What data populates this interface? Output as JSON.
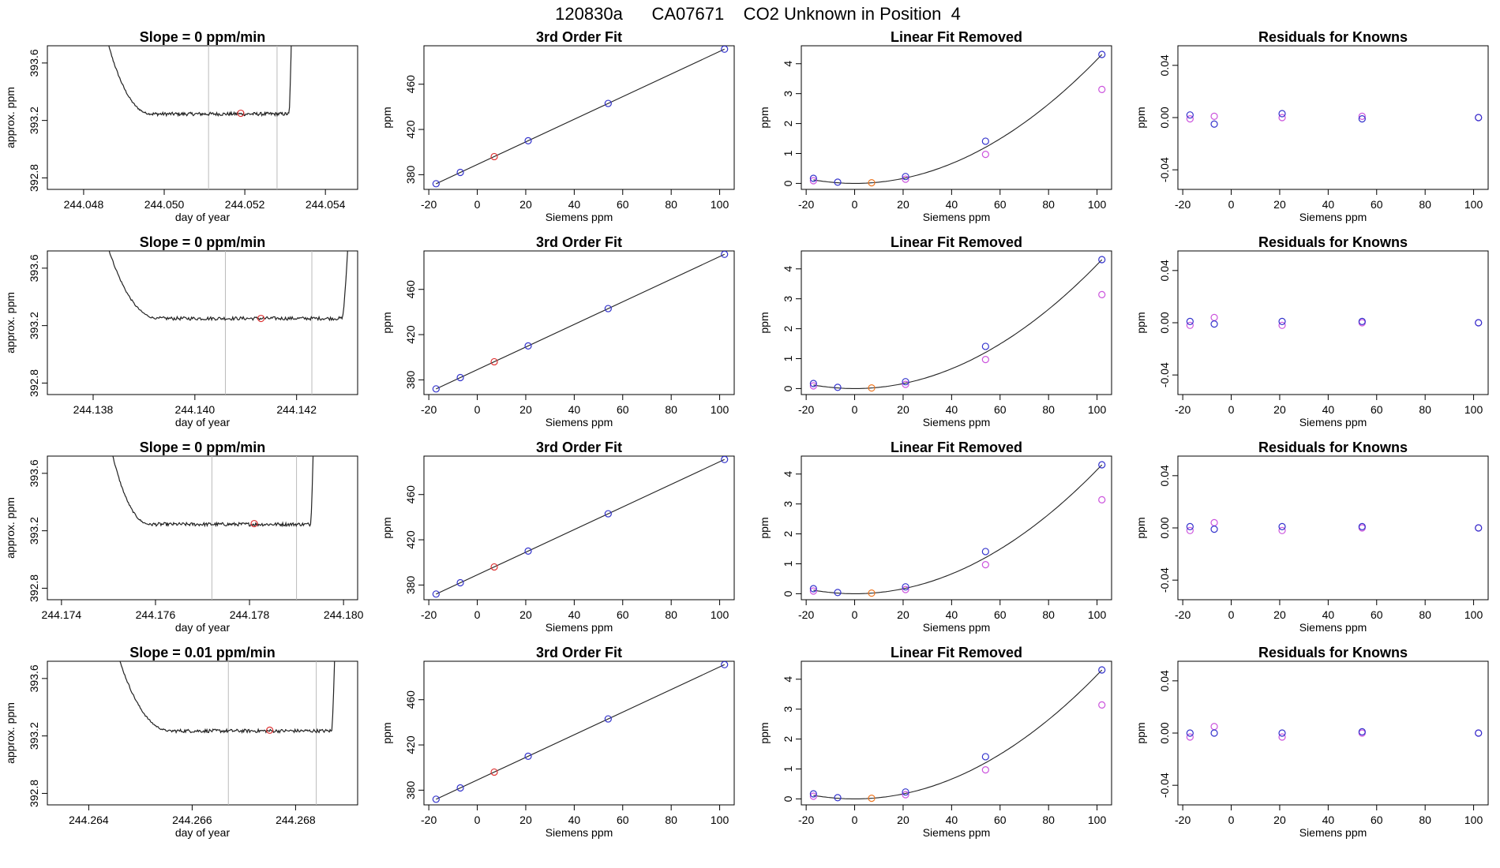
{
  "page": {
    "title": "120830a      CA07671    CO2 Unknown in Position  4"
  },
  "colors": {
    "trace": "#222222",
    "vline": "#bbbbbb",
    "unknown_point": "#dd3333",
    "known_point": "#3333cc",
    "removed_point": "#cc55dd",
    "interp_point": "#ee7722",
    "fit_line": "#222222",
    "frame": "#000000"
  },
  "chart_data": [
    {
      "type": "line",
      "id": "r1-trace",
      "title": "Slope =  0  ppm/min",
      "xlabel": "day of year",
      "ylabel": "approx. ppm",
      "xlim": [
        244.0471,
        244.0548
      ],
      "ylim": [
        392.72,
        393.72
      ],
      "xticks": [
        "244.048",
        "244.050",
        "244.052",
        "244.054"
      ],
      "yticks": [
        "392.8",
        "393.2",
        "393.6"
      ],
      "start": 244.0485,
      "end": 244.0532,
      "settle": 244.0497,
      "rise": 244.0531,
      "level": 393.245,
      "vlines": [
        244.0511,
        244.0528
      ],
      "unknown": {
        "x": 244.0519,
        "y": 393.25
      }
    },
    {
      "type": "scatter",
      "id": "r1-fit",
      "title": "3rd Order Fit",
      "xlabel": "Siemens ppm",
      "ylabel": "ppm",
      "xlim": [
        -22,
        106
      ],
      "ylim": [
        367,
        494
      ],
      "xticks": [
        "-20",
        "0",
        "20",
        "40",
        "60",
        "80",
        "100"
      ],
      "yticks": [
        "380",
        "420",
        "460"
      ],
      "known": [
        {
          "x": -17,
          "y": 372
        },
        {
          "x": -7,
          "y": 382
        },
        {
          "x": 21,
          "y": 410
        },
        {
          "x": 54,
          "y": 443
        },
        {
          "x": 102,
          "y": 491
        }
      ],
      "unknown": {
        "x": 7,
        "y": 396
      }
    },
    {
      "type": "scatter",
      "id": "r1-linear",
      "title": "Linear Fit Removed",
      "xlabel": "Siemens ppm",
      "ylabel": "ppm",
      "xlim": [
        -22,
        106
      ],
      "ylim": [
        -0.2,
        4.6
      ],
      "xticks": [
        "-20",
        "0",
        "20",
        "40",
        "60",
        "80",
        "100"
      ],
      "yticks": [
        "0",
        "1",
        "2",
        "3",
        "4"
      ],
      "known": [
        {
          "x": -17,
          "y": 0.17
        },
        {
          "x": -7,
          "y": 0.04
        },
        {
          "x": 21,
          "y": 0.23
        },
        {
          "x": 54,
          "y": 1.41
        },
        {
          "x": 102,
          "y": 4.31
        }
      ],
      "removed": [
        {
          "x": -17,
          "y": 0.09
        },
        {
          "x": 21,
          "y": 0.14
        },
        {
          "x": 54,
          "y": 0.97
        },
        {
          "x": 102,
          "y": 3.14
        }
      ],
      "unknown": {
        "x": 7,
        "y": 0.02
      }
    },
    {
      "type": "scatter",
      "id": "r1-resid",
      "title": "Residuals for Knowns",
      "xlabel": "Siemens ppm",
      "ylabel": "ppm",
      "xlim": [
        -22,
        106
      ],
      "ylim": [
        -0.055,
        0.055
      ],
      "xticks": [
        "-20",
        "0",
        "20",
        "40",
        "60",
        "80",
        "100"
      ],
      "yticks": [
        "-0.04",
        "0.00",
        "0.04"
      ],
      "known": [
        {
          "x": -17,
          "y": 0.002
        },
        {
          "x": -7,
          "y": -0.005
        },
        {
          "x": 21,
          "y": 0.003
        },
        {
          "x": 54,
          "y": -0.001
        },
        {
          "x": 102,
          "y": 0
        }
      ],
      "removed": [
        {
          "x": -17,
          "y": -0.001
        },
        {
          "x": -7,
          "y": 0.001
        },
        {
          "x": 21,
          "y": 0
        },
        {
          "x": 54,
          "y": 0.001
        },
        {
          "x": 102,
          "y": 0
        }
      ]
    },
    {
      "type": "line",
      "id": "r2-trace",
      "title": "Slope =  0  ppm/min",
      "xlabel": "day of year",
      "ylabel": "approx. ppm",
      "xlim": [
        244.1371,
        244.1432
      ],
      "ylim": [
        392.72,
        393.72
      ],
      "xticks": [
        "244.138",
        "244.140",
        "244.142"
      ],
      "yticks": [
        "392.8",
        "393.2",
        "393.6"
      ],
      "start": 244.1382,
      "end": 244.1431,
      "settle": 244.1393,
      "rise": 244.1429,
      "level": 393.25,
      "vlines": [
        244.1406,
        244.1423
      ],
      "unknown": {
        "x": 244.1413,
        "y": 393.25
      }
    },
    {
      "type": "scatter",
      "id": "r2-fit",
      "title": "3rd Order Fit",
      "xlabel": "Siemens ppm",
      "ylabel": "ppm",
      "xlim": [
        -22,
        106
      ],
      "ylim": [
        367,
        494
      ],
      "xticks": [
        "-20",
        "0",
        "20",
        "40",
        "60",
        "80",
        "100"
      ],
      "yticks": [
        "380",
        "420",
        "460"
      ],
      "known": [
        {
          "x": -17,
          "y": 372
        },
        {
          "x": -7,
          "y": 382
        },
        {
          "x": 21,
          "y": 410
        },
        {
          "x": 54,
          "y": 443
        },
        {
          "x": 102,
          "y": 491
        }
      ],
      "unknown": {
        "x": 7,
        "y": 396
      }
    },
    {
      "type": "scatter",
      "id": "r2-linear",
      "title": "Linear Fit Removed",
      "xlabel": "Siemens ppm",
      "ylabel": "ppm",
      "xlim": [
        -22,
        106
      ],
      "ylim": [
        -0.2,
        4.6
      ],
      "xticks": [
        "-20",
        "0",
        "20",
        "40",
        "60",
        "80",
        "100"
      ],
      "yticks": [
        "0",
        "1",
        "2",
        "3",
        "4"
      ],
      "known": [
        {
          "x": -17,
          "y": 0.17
        },
        {
          "x": -7,
          "y": 0.04
        },
        {
          "x": 21,
          "y": 0.23
        },
        {
          "x": 54,
          "y": 1.41
        },
        {
          "x": 102,
          "y": 4.31
        }
      ],
      "removed": [
        {
          "x": -17,
          "y": 0.09
        },
        {
          "x": 21,
          "y": 0.14
        },
        {
          "x": 54,
          "y": 0.97
        },
        {
          "x": 102,
          "y": 3.14
        }
      ],
      "unknown": {
        "x": 7,
        "y": 0.02
      }
    },
    {
      "type": "scatter",
      "id": "r2-resid",
      "title": "Residuals for Knowns",
      "xlabel": "Siemens ppm",
      "ylabel": "ppm",
      "xlim": [
        -22,
        106
      ],
      "ylim": [
        -0.055,
        0.055
      ],
      "xticks": [
        "-20",
        "0",
        "20",
        "40",
        "60",
        "80",
        "100"
      ],
      "yticks": [
        "-0.04",
        "0.00",
        "0.04"
      ],
      "known": [
        {
          "x": -17,
          "y": 0.001
        },
        {
          "x": -7,
          "y": -0.001
        },
        {
          "x": 21,
          "y": 0.001
        },
        {
          "x": 54,
          "y": 0.001
        },
        {
          "x": 102,
          "y": 0
        }
      ],
      "removed": [
        {
          "x": -17,
          "y": -0.002
        },
        {
          "x": -7,
          "y": 0.004
        },
        {
          "x": 21,
          "y": -0.002
        },
        {
          "x": 54,
          "y": 0
        },
        {
          "x": 102,
          "y": 0
        }
      ]
    },
    {
      "type": "line",
      "id": "r3-trace",
      "title": "Slope =  0  ppm/min",
      "xlabel": "day of year",
      "ylabel": "approx. ppm",
      "xlim": [
        244.1737,
        244.1803
      ],
      "ylim": [
        392.72,
        393.72
      ],
      "xticks": [
        "244.174",
        "244.176",
        "244.178",
        "244.180"
      ],
      "yticks": [
        "392.8",
        "393.2",
        "393.6"
      ],
      "start": 244.175,
      "end": 244.1794,
      "settle": 244.1759,
      "rise": 244.1793,
      "level": 393.245,
      "vlines": [
        244.1772,
        244.179
      ],
      "unknown": {
        "x": 244.1781,
        "y": 393.25
      }
    },
    {
      "type": "scatter",
      "id": "r3-fit",
      "title": "3rd Order Fit",
      "xlabel": "Siemens ppm",
      "ylabel": "ppm",
      "xlim": [
        -22,
        106
      ],
      "ylim": [
        367,
        494
      ],
      "xticks": [
        "-20",
        "0",
        "20",
        "40",
        "60",
        "80",
        "100"
      ],
      "yticks": [
        "380",
        "420",
        "460"
      ],
      "known": [
        {
          "x": -17,
          "y": 372
        },
        {
          "x": -7,
          "y": 382
        },
        {
          "x": 21,
          "y": 410
        },
        {
          "x": 54,
          "y": 443
        },
        {
          "x": 102,
          "y": 491
        }
      ],
      "unknown": {
        "x": 7,
        "y": 396
      }
    },
    {
      "type": "scatter",
      "id": "r3-linear",
      "title": "Linear Fit Removed",
      "xlabel": "Siemens ppm",
      "ylabel": "ppm",
      "xlim": [
        -22,
        106
      ],
      "ylim": [
        -0.2,
        4.6
      ],
      "xticks": [
        "-20",
        "0",
        "20",
        "40",
        "60",
        "80",
        "100"
      ],
      "yticks": [
        "0",
        "1",
        "2",
        "3",
        "4"
      ],
      "known": [
        {
          "x": -17,
          "y": 0.17
        },
        {
          "x": -7,
          "y": 0.04
        },
        {
          "x": 21,
          "y": 0.23
        },
        {
          "x": 54,
          "y": 1.41
        },
        {
          "x": 102,
          "y": 4.31
        }
      ],
      "removed": [
        {
          "x": -17,
          "y": 0.09
        },
        {
          "x": 21,
          "y": 0.14
        },
        {
          "x": 54,
          "y": 0.97
        },
        {
          "x": 102,
          "y": 3.14
        }
      ],
      "unknown": {
        "x": 7,
        "y": 0.02
      }
    },
    {
      "type": "scatter",
      "id": "r3-resid",
      "title": "Residuals for Knowns",
      "xlabel": "Siemens ppm",
      "ylabel": "ppm",
      "xlim": [
        -22,
        106
      ],
      "ylim": [
        -0.055,
        0.055
      ],
      "xticks": [
        "-20",
        "0",
        "20",
        "40",
        "60",
        "80",
        "100"
      ],
      "yticks": [
        "-0.04",
        "0.00",
        "0.04"
      ],
      "known": [
        {
          "x": -17,
          "y": 0.001
        },
        {
          "x": -7,
          "y": -0.001
        },
        {
          "x": 21,
          "y": 0.001
        },
        {
          "x": 54,
          "y": 0.001
        },
        {
          "x": 102,
          "y": 0
        }
      ],
      "removed": [
        {
          "x": -17,
          "y": -0.002
        },
        {
          "x": -7,
          "y": 0.004
        },
        {
          "x": 21,
          "y": -0.002
        },
        {
          "x": 54,
          "y": 0
        },
        {
          "x": 102,
          "y": 0
        }
      ]
    },
    {
      "type": "line",
      "id": "r4-trace",
      "title": "Slope =  0.01  ppm/min",
      "xlabel": "day of year",
      "ylabel": "approx. ppm",
      "xlim": [
        244.2632,
        244.2692
      ],
      "ylim": [
        392.72,
        393.72
      ],
      "xticks": [
        "244.264",
        "244.266",
        "244.268"
      ],
      "yticks": [
        "392.8",
        "393.2",
        "393.6"
      ],
      "start": 244.2645,
      "end": 244.2688,
      "settle": 244.2656,
      "rise": 244.2687,
      "level": 393.235,
      "vlines": [
        244.2667,
        244.2684
      ],
      "unknown": {
        "x": 244.2675,
        "y": 393.24
      }
    },
    {
      "type": "scatter",
      "id": "r4-fit",
      "title": "3rd Order Fit",
      "xlabel": "Siemens ppm",
      "ylabel": "ppm",
      "xlim": [
        -22,
        106
      ],
      "ylim": [
        367,
        494
      ],
      "xticks": [
        "-20",
        "0",
        "20",
        "40",
        "60",
        "80",
        "100"
      ],
      "yticks": [
        "380",
        "420",
        "460"
      ],
      "known": [
        {
          "x": -17,
          "y": 372
        },
        {
          "x": -7,
          "y": 382
        },
        {
          "x": 21,
          "y": 410
        },
        {
          "x": 54,
          "y": 443
        },
        {
          "x": 102,
          "y": 491
        }
      ],
      "unknown": {
        "x": 7,
        "y": 396
      }
    },
    {
      "type": "scatter",
      "id": "r4-linear",
      "title": "Linear Fit Removed",
      "xlabel": "Siemens ppm",
      "ylabel": "ppm",
      "xlim": [
        -22,
        106
      ],
      "ylim": [
        -0.2,
        4.6
      ],
      "xticks": [
        "-20",
        "0",
        "20",
        "40",
        "60",
        "80",
        "100"
      ],
      "yticks": [
        "0",
        "1",
        "2",
        "3",
        "4"
      ],
      "known": [
        {
          "x": -17,
          "y": 0.17
        },
        {
          "x": -7,
          "y": 0.04
        },
        {
          "x": 21,
          "y": 0.23
        },
        {
          "x": 54,
          "y": 1.41
        },
        {
          "x": 102,
          "y": 4.31
        }
      ],
      "removed": [
        {
          "x": -17,
          "y": 0.09
        },
        {
          "x": 21,
          "y": 0.14
        },
        {
          "x": 54,
          "y": 0.97
        },
        {
          "x": 102,
          "y": 3.14
        }
      ],
      "unknown": {
        "x": 7,
        "y": 0.02
      }
    },
    {
      "type": "scatter",
      "id": "r4-resid",
      "title": "Residuals for Knowns",
      "xlabel": "Siemens ppm",
      "ylabel": "ppm",
      "xlim": [
        -22,
        106
      ],
      "ylim": [
        -0.055,
        0.055
      ],
      "xticks": [
        "-20",
        "0",
        "20",
        "40",
        "60",
        "80",
        "100"
      ],
      "yticks": [
        "-0.04",
        "0.00",
        "0.04"
      ],
      "known": [
        {
          "x": -17,
          "y": 0.0
        },
        {
          "x": -7,
          "y": 0.0
        },
        {
          "x": 21,
          "y": 0.0
        },
        {
          "x": 54,
          "y": 0.001
        },
        {
          "x": 102,
          "y": 0
        }
      ],
      "removed": [
        {
          "x": -17,
          "y": -0.003
        },
        {
          "x": -7,
          "y": 0.005
        },
        {
          "x": 21,
          "y": -0.003
        },
        {
          "x": 54,
          "y": 0
        },
        {
          "x": 102,
          "y": 0
        }
      ]
    }
  ]
}
